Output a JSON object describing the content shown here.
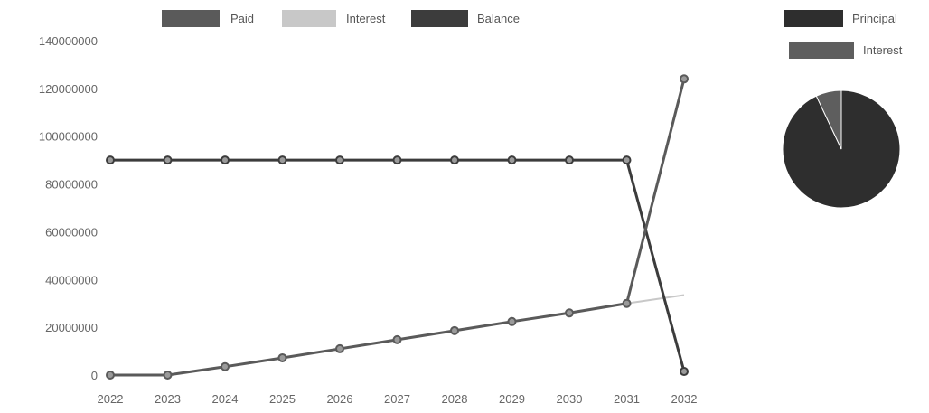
{
  "chart_data": [
    {
      "type": "line",
      "x": [
        "2022",
        "2023",
        "2024",
        "2025",
        "2026",
        "2027",
        "2028",
        "2029",
        "2030",
        "2031",
        "2032"
      ],
      "ylim": [
        0,
        140000000
      ],
      "yticks": [
        "0",
        "20000000",
        "40000000",
        "60000000",
        "80000000",
        "100000000",
        "120000000",
        "140000000"
      ],
      "grid": false,
      "legend_position": "top",
      "series": [
        {
          "name": "Paid",
          "color": "#5a5a5a",
          "values": [
            0,
            0,
            3500000,
            7200000,
            11000000,
            14800000,
            18600000,
            22400000,
            26000000,
            30000000,
            124000000
          ]
        },
        {
          "name": "Interest",
          "color": "#c8c8c8",
          "values": [
            0,
            0,
            3500000,
            7200000,
            11000000,
            14800000,
            18600000,
            22400000,
            26000000,
            30000000,
            33500000
          ]
        },
        {
          "name": "Balance",
          "color": "#3c3c3c",
          "values": [
            90000000,
            90000000,
            90000000,
            90000000,
            90000000,
            90000000,
            90000000,
            90000000,
            90000000,
            90000000,
            1500000
          ]
        }
      ]
    },
    {
      "type": "pie",
      "legend_position": "top",
      "series": [
        {
          "labels": [
            "Principal",
            "Interest"
          ],
          "colors": [
            "#2e2e2e",
            "#5e5e5e"
          ],
          "values": [
            93,
            7
          ]
        }
      ]
    }
  ]
}
